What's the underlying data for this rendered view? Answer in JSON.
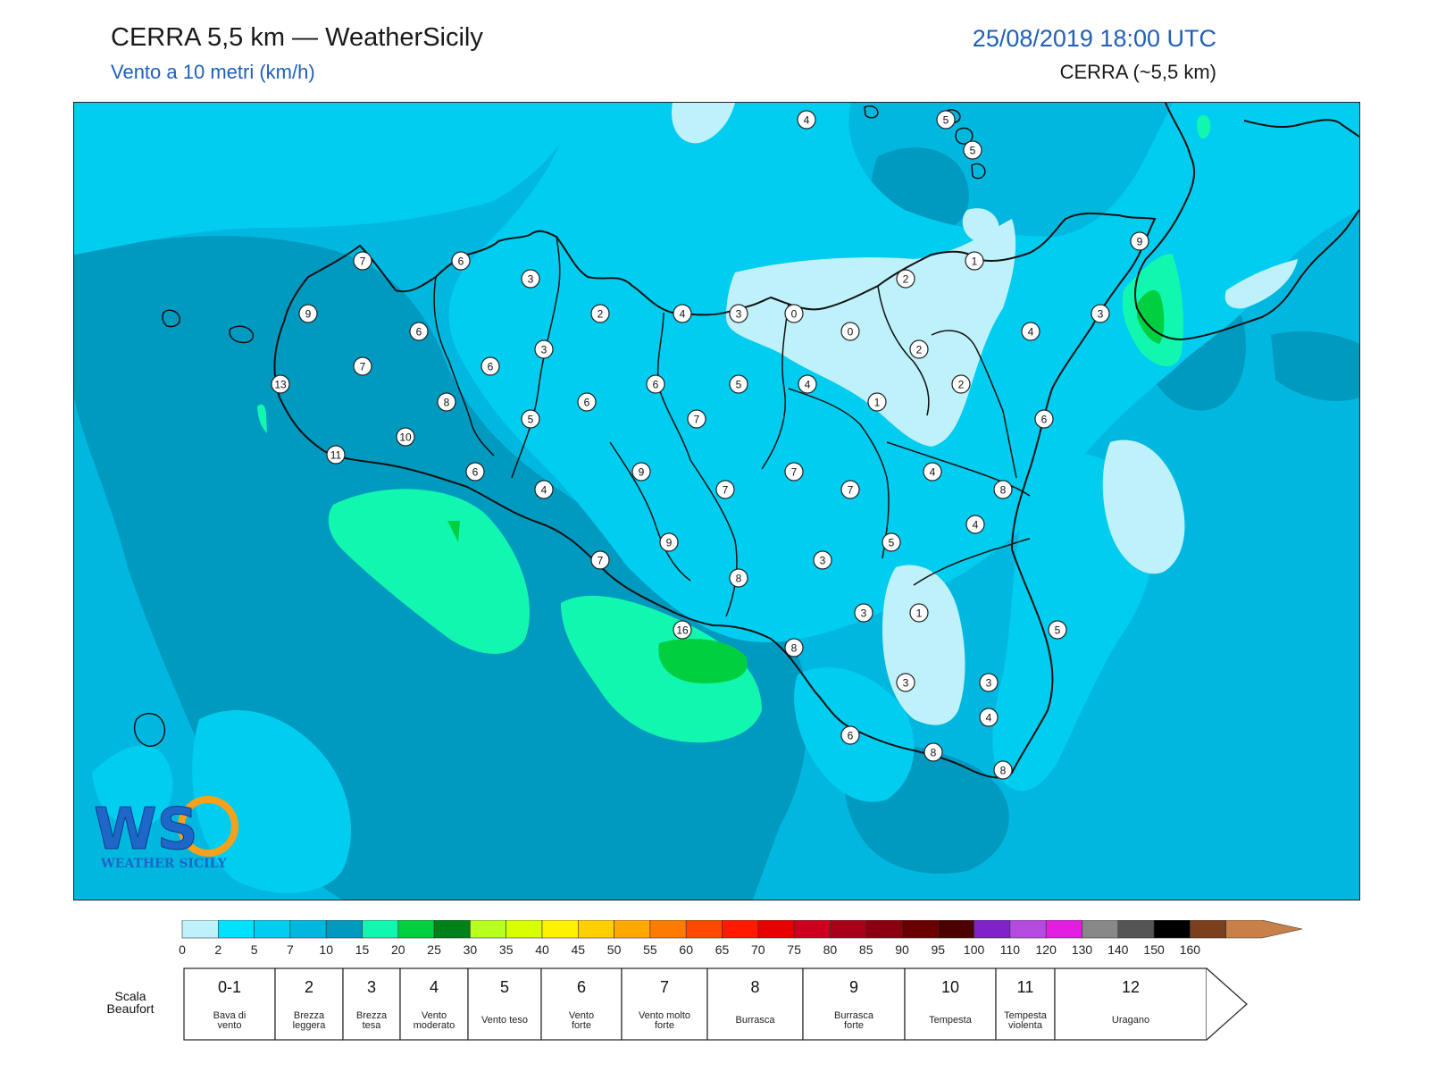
{
  "header": {
    "title": "CERRA 5,5 km — WeatherSicily",
    "subtitle": "Vento a 10 metri (km/h)",
    "datetime": "25/08/2019 18:00 UTC",
    "model": "CERRA (~5,5 km)"
  },
  "logo": {
    "text": "WEATHER SICILY",
    "mark": "WS"
  },
  "colorbar": {
    "ticks": [
      "0",
      "2",
      "5",
      "7",
      "10",
      "15",
      "20",
      "25",
      "30",
      "35",
      "40",
      "45",
      "50",
      "55",
      "60",
      "65",
      "70",
      "75",
      "80",
      "85",
      "90",
      "95",
      "100",
      "110",
      "120",
      "130",
      "140",
      "150",
      "160"
    ],
    "colors": [
      "#bff1fb",
      "#00e0ff",
      "#00cdf0",
      "#00b8df",
      "#0099c0",
      "#11f7b0",
      "#00d040",
      "#00801a",
      "#b6ff1e",
      "#d8ff00",
      "#fff200",
      "#ffcf00",
      "#ffa800",
      "#ff7b00",
      "#ff4800",
      "#ff1a00",
      "#e60000",
      "#cc001e",
      "#a8001a",
      "#8a0010",
      "#6b0000",
      "#4c0000",
      "#7f22c8",
      "#b44be0",
      "#e21ee0",
      "#888888",
      "#555555",
      "#000000",
      "#7b3f1e",
      "#c87f48"
    ]
  },
  "beaufort": {
    "label": "Scala\nBeaufort",
    "cells": [
      {
        "num": "0-1",
        "desc": "Bava di\nvento"
      },
      {
        "num": "2",
        "desc": "Brezza\nleggera"
      },
      {
        "num": "3",
        "desc": "Brezza\ntesa"
      },
      {
        "num": "4",
        "desc": "Vento\nmoderato"
      },
      {
        "num": "5",
        "desc": "Vento teso"
      },
      {
        "num": "6",
        "desc": "Vento\nforte"
      },
      {
        "num": "7",
        "desc": "Vento molto\nforte"
      },
      {
        "num": "8",
        "desc": "Burrasca"
      },
      {
        "num": "9",
        "desc": "Burrasca\nforte"
      },
      {
        "num": "10",
        "desc": "Tempesta"
      },
      {
        "num": "11",
        "desc": "Tempesta\nviolenta"
      },
      {
        "num": "12",
        "desc": "Uragano"
      }
    ]
  },
  "stations": [
    {
      "v": "4"
    },
    {
      "v": "5"
    },
    {
      "v": "5"
    },
    {
      "v": "9"
    },
    {
      "v": "7"
    },
    {
      "v": "6"
    },
    {
      "v": "3"
    },
    {
      "v": "1"
    },
    {
      "v": "2"
    },
    {
      "v": "9"
    },
    {
      "v": "6"
    },
    {
      "v": "2"
    },
    {
      "v": "4"
    },
    {
      "v": "3"
    },
    {
      "v": "0"
    },
    {
      "v": "0"
    },
    {
      "v": "3"
    },
    {
      "v": "2"
    },
    {
      "v": "4"
    },
    {
      "v": "7"
    },
    {
      "v": "3"
    },
    {
      "v": "6"
    },
    {
      "v": "13"
    },
    {
      "v": "6"
    },
    {
      "v": "6"
    },
    {
      "v": "5"
    },
    {
      "v": "4"
    },
    {
      "v": "1"
    },
    {
      "v": "2"
    },
    {
      "v": "8"
    },
    {
      "v": "10"
    },
    {
      "v": "5"
    },
    {
      "v": "7"
    },
    {
      "v": "6"
    },
    {
      "v": "11"
    },
    {
      "v": "6"
    },
    {
      "v": "9"
    },
    {
      "v": "7"
    },
    {
      "v": "4"
    },
    {
      "v": "8"
    },
    {
      "v": "4"
    },
    {
      "v": "7"
    },
    {
      "v": "7"
    },
    {
      "v": "9"
    },
    {
      "v": "5"
    },
    {
      "v": "7"
    },
    {
      "v": "8"
    },
    {
      "v": "3"
    },
    {
      "v": "4"
    },
    {
      "v": "3"
    },
    {
      "v": "1"
    },
    {
      "v": "16"
    },
    {
      "v": "5"
    },
    {
      "v": "8"
    },
    {
      "v": "3"
    },
    {
      "v": "3"
    },
    {
      "v": "4"
    },
    {
      "v": "6"
    },
    {
      "v": "8"
    },
    {
      "v": "8"
    }
  ]
}
